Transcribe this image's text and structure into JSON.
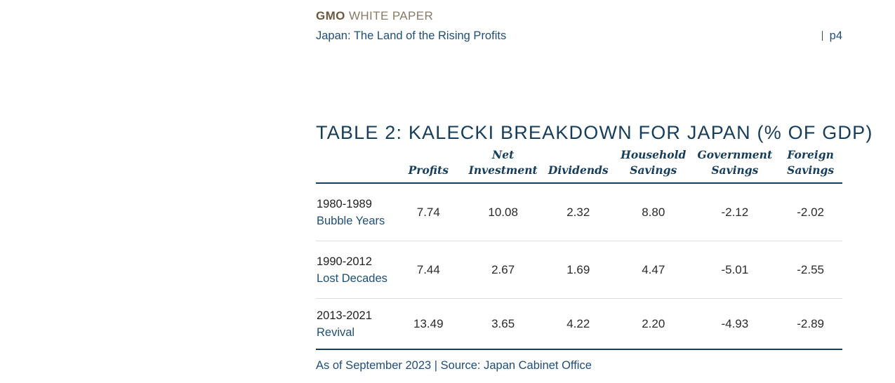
{
  "header": {
    "brand": "GMO",
    "doc_type": "WHITE PAPER",
    "subtitle": "Japan: The Land of the Rising Profits",
    "page": "p4"
  },
  "table": {
    "title": "TABLE 2: KALECKI BREAKDOWN FOR JAPAN (% OF GDP)",
    "columns": [
      {
        "line1": "",
        "line2": "Profits"
      },
      {
        "line1": "Net",
        "line2": "Investment"
      },
      {
        "line1": "",
        "line2": "Dividends"
      },
      {
        "line1": "Household",
        "line2": "Savings"
      },
      {
        "line1": "Government",
        "line2": "Savings"
      },
      {
        "line1": "Foreign",
        "line2": "Savings"
      }
    ],
    "rows": [
      {
        "period": "1980-1989",
        "era": "Bubble Years",
        "values": [
          "7.74",
          "10.08",
          "2.32",
          "8.80",
          "-2.12",
          "-2.02"
        ]
      },
      {
        "period": "1990-2012",
        "era": "Lost Decades",
        "values": [
          "7.44",
          "2.67",
          "1.69",
          "4.47",
          "-5.01",
          "-2.55"
        ]
      },
      {
        "period": "2013-2021",
        "era": "Revival",
        "values": [
          "13.49",
          "3.65",
          "4.22",
          "2.20",
          "-4.93",
          "-2.89"
        ]
      }
    ]
  },
  "source": "As of September 2023 | Source: Japan Cabinet Office"
}
